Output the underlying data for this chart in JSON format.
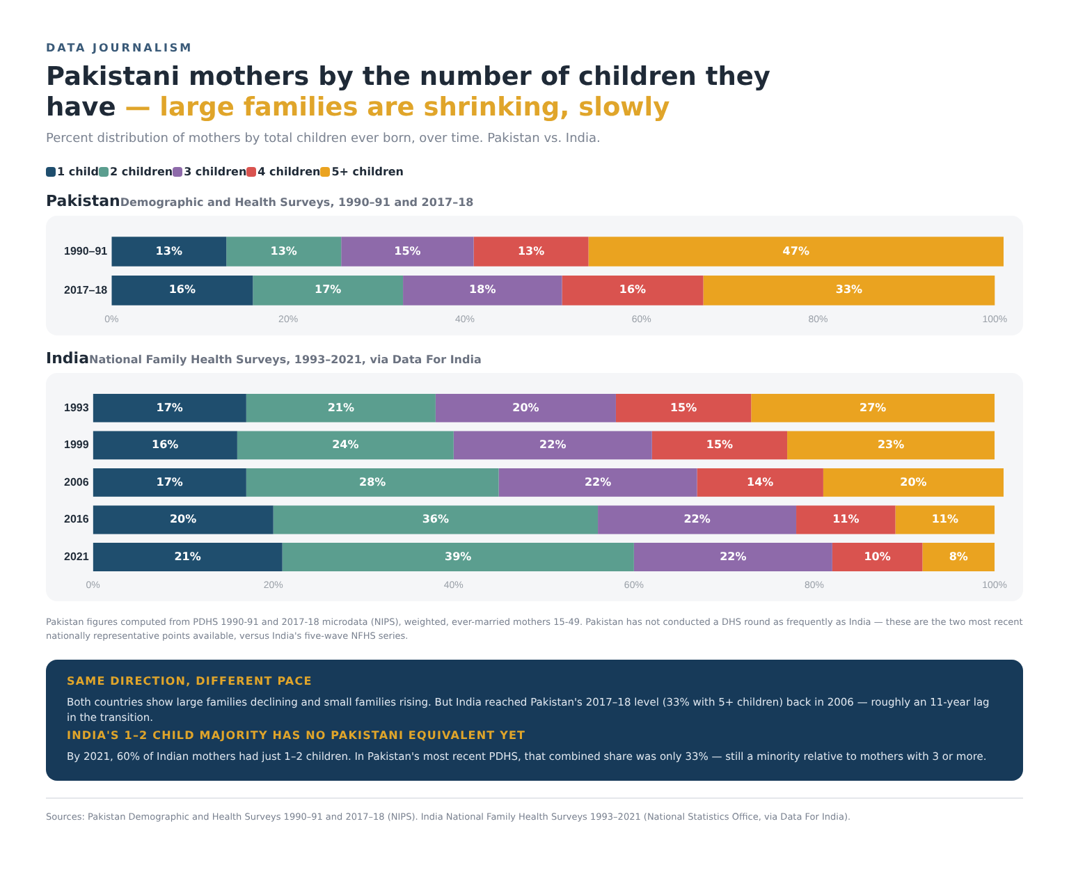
{
  "chart_data": [
    {
      "type": "other",
      "title": "Pakistani mothers by the number of children they have — large families are shrinking, slowly",
      "subtitle": "Percent distribution of mothers by total children ever born, over time. Pakistan vs. India.",
      "annotations": [
        "DATA JOURNALISM"
      ]
    },
    {
      "type": "bar",
      "title": "Pakistan",
      "subtitle": "Demographic and Health Surveys, 1990–91 and 2017–18",
      "orientation": "horizontal",
      "stacked": true,
      "legend": "top left",
      "grid": false,
      "categories": [
        "1990–91",
        "2017–18"
      ],
      "series": [
        {
          "name": "1 child",
          "color": "#1f4e6e",
          "values": [
            13,
            16
          ],
          "value_labels": [
            "13%",
            "16%"
          ]
        },
        {
          "name": "2 children",
          "color": "#5b9e8f",
          "values": [
            13,
            17
          ],
          "value_labels": [
            "13%",
            "17%"
          ]
        },
        {
          "name": "3 children",
          "color": "#8e6aaa",
          "values": [
            15,
            18
          ],
          "value_labels": [
            "15%",
            "18%"
          ]
        },
        {
          "name": "4 children",
          "color": "#d9534f",
          "values": [
            13,
            16
          ],
          "value_labels": [
            "13%",
            "16%"
          ]
        },
        {
          "name": "5+ children",
          "color": "#eaa320",
          "values": [
            47,
            33
          ],
          "value_labels": [
            "47%",
            "33%"
          ]
        }
      ],
      "xlim": [
        0,
        101
      ],
      "xticks": [
        {
          "value": 0,
          "label": "0%"
        },
        {
          "value": 20,
          "label": "20%"
        },
        {
          "value": 40,
          "label": "40%"
        },
        {
          "value": 60,
          "label": "60%"
        },
        {
          "value": 80,
          "label": "80%"
        },
        {
          "value": 100,
          "label": "100%"
        }
      ]
    },
    {
      "type": "bar",
      "title": "India",
      "subtitle": "National Family Health Surveys, 1993–2021, via Data For India",
      "orientation": "horizontal",
      "stacked": true,
      "grid": false,
      "categories": [
        "1993",
        "1999",
        "2006",
        "2016",
        "2021"
      ],
      "series": [
        {
          "color": "#1f4e6e",
          "values": [
            17,
            16,
            17,
            20,
            21
          ],
          "value_labels": [
            "17%",
            "16%",
            "17%",
            "20%",
            "21%"
          ]
        },
        {
          "color": "#5b9e8f",
          "values": [
            21,
            24,
            28,
            36,
            39
          ],
          "value_labels": [
            "21%",
            "24%",
            "28%",
            "36%",
            "39%"
          ]
        },
        {
          "color": "#8e6aaa",
          "values": [
            20,
            22,
            22,
            22,
            22
          ],
          "value_labels": [
            "20%",
            "22%",
            "22%",
            "22%",
            "22%"
          ]
        },
        {
          "color": "#d9534f",
          "values": [
            15,
            15,
            14,
            11,
            10
          ],
          "value_labels": [
            "15%",
            "15%",
            "14%",
            "11%",
            "10%"
          ]
        },
        {
          "color": "#eaa320",
          "values": [
            27,
            23,
            20,
            11,
            8
          ],
          "value_labels": [
            "27%",
            "23%",
            "20%",
            "11%",
            "8%"
          ]
        }
      ],
      "xlim": [
        0,
        101
      ],
      "xticks": [
        {
          "value": 0,
          "label": "0%"
        },
        {
          "value": 20,
          "label": "20%"
        },
        {
          "value": 40,
          "label": "40%"
        },
        {
          "value": 60,
          "label": "60%"
        },
        {
          "value": 80,
          "label": "80%"
        },
        {
          "value": 100,
          "label": "100%"
        }
      ],
      "annotations": [
        "Pakistan figures computed from PDHS 1990-91 and 2017-18 microdata (NIPS), weighted, ever-married mothers 15-49. Pakistan has not conducted a DHS round as frequently as India — these are the two most recent nationally representative points available, versus India's five-wave NFHS series.",
        "SAME DIRECTION, DIFFERENT PACE",
        "Both countries show large families declining and small families rising. But India reached Pakistan's 2017–18 level (33% with 5+ children) back in 2006 — roughly an 11-year lag in the transition.",
        "INDIA'S 1–2 CHILD MAJORITY HAS NO PAKISTANI EQUIVALENT YET",
        "By 2021, 60% of Indian mothers had just 1–2 children. In Pakistan's most recent PDHS, that combined share was only 33% — still a minority relative to mothers with 3 or more.",
        "Sources: Pakistan Demographic and Health Surveys 1990–91 and 2017–18 (NIPS). India National Family Health Surveys 1993–2021 (National Statistics Office, via Data For India)."
      ]
    }
  ]
}
